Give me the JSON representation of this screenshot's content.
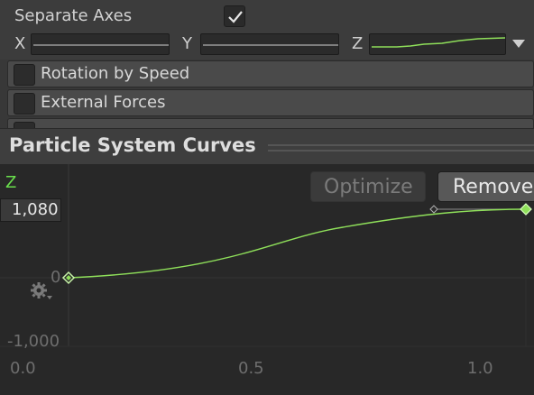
{
  "inspector": {
    "separate_axes_label": "Separate Axes",
    "separate_axes_checked": true,
    "axis_x_label": "X",
    "axis_y_label": "Y",
    "axis_z_label": "Z"
  },
  "modules": [
    {
      "label": "Rotation by Speed",
      "enabled": false
    },
    {
      "label": "External Forces",
      "enabled": false
    }
  ],
  "curves_panel": {
    "title": "Particle System Curves",
    "param_label": "Z",
    "optimize_label": "Optimize",
    "remove_label": "Remove",
    "max_value": "1,080",
    "y_ticks": [
      "0",
      "-1,000"
    ],
    "x_ticks": [
      "0.0",
      "0.5",
      "1.0"
    ]
  },
  "colors": {
    "curve": "#8fe05a",
    "param_label": "#69e04c",
    "background": "#282828"
  }
}
